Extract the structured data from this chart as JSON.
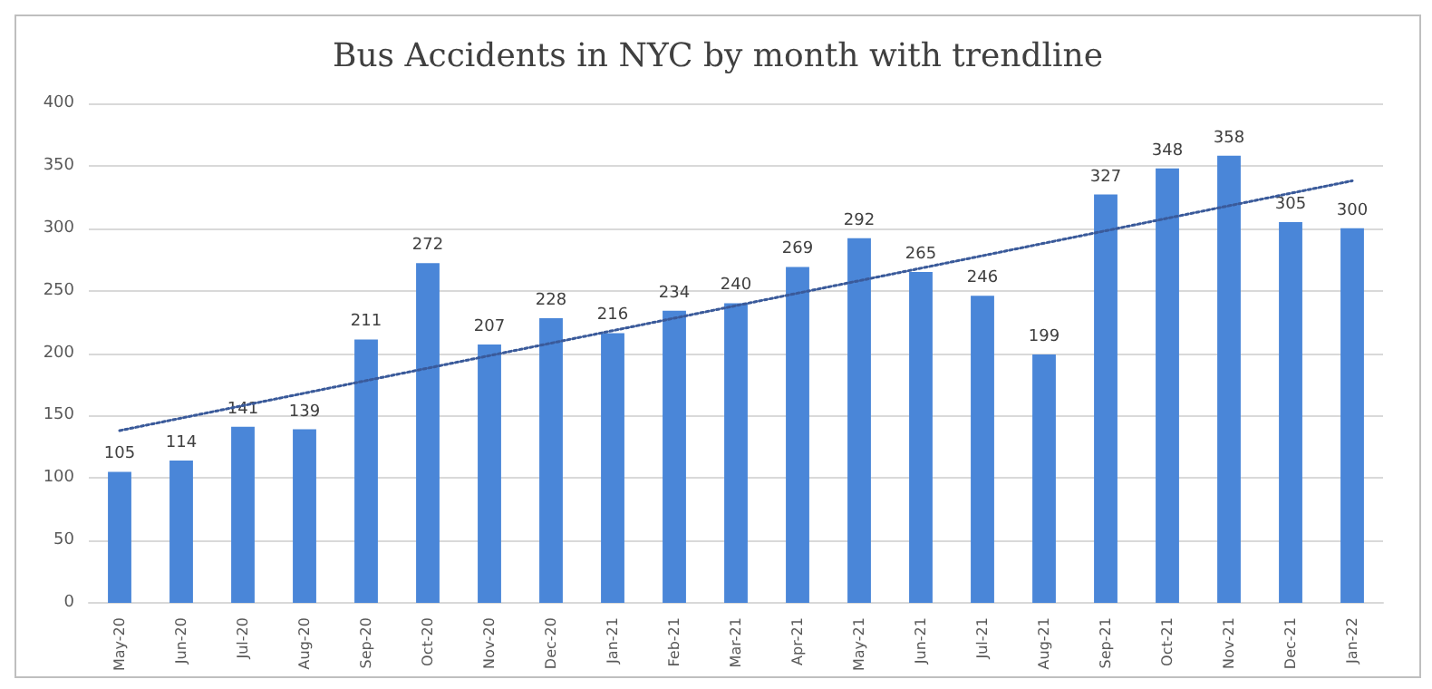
{
  "chart_data": {
    "type": "bar",
    "title": "Bus Accidents in NYC by month with trendline",
    "categories": [
      "May-20",
      "Jun-20",
      "Jul-20",
      "Aug-20",
      "Sep-20",
      "Oct-20",
      "Nov-20",
      "Dec-20",
      "Jan-21",
      "Feb-21",
      "Mar-21",
      "Apr-21",
      "May-21",
      "Jun-21",
      "Jul-21",
      "Aug-21",
      "Sep-21",
      "Oct-21",
      "Nov-21",
      "Dec-21",
      "Jan-22"
    ],
    "series": [
      {
        "color": "#4a86d8",
        "data_labels": true,
        "values": [
          105,
          114,
          141,
          139,
          211,
          272,
          207,
          228,
          216,
          234,
          240,
          269,
          292,
          265,
          246,
          199,
          327,
          348,
          358,
          305,
          300
        ]
      },
      {
        "type": "line",
        "color": "#3a5a9a",
        "line_style": "dotted",
        "marker": "none",
        "x": [
          "May-20",
          "Jan-22"
        ],
        "values": [
          138,
          338
        ]
      }
    ],
    "ylim": [
      0,
      400
    ],
    "yticks": [
      0,
      50,
      100,
      150,
      200,
      250,
      300,
      350,
      400
    ],
    "grid": "y"
  }
}
